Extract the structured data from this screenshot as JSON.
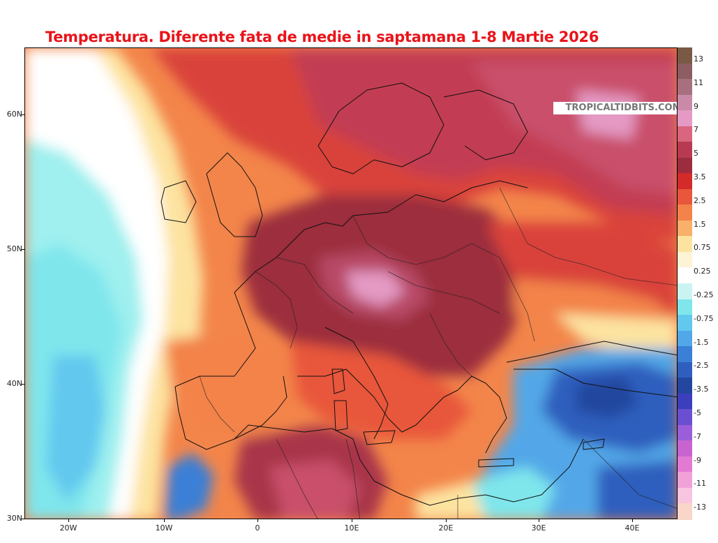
{
  "title": "Temperatura. Diferente fata de medie in saptamana 1-8 Martie 2026",
  "credit": "TROPICALTIDBITS.COM",
  "latitude_labels": [
    "60N",
    "50N",
    "40N",
    "30N"
  ],
  "longitude_labels": [
    "20W",
    "10W",
    "0",
    "10E",
    "20E",
    "30E",
    "40E"
  ],
  "colorbar": {
    "labels": [
      "13",
      "11",
      "9",
      "7",
      "5",
      "3.5",
      "2.5",
      "1.5",
      "0.75",
      "0.25",
      "-0.25",
      "-0.75",
      "-1.5",
      "-2.5",
      "-3.5",
      "-5",
      "-7",
      "-9",
      "-11",
      "-13"
    ],
    "colors": [
      "#7a5a45",
      "#8c5d63",
      "#a8707f",
      "#c98aa8",
      "#e49ac4",
      "#d9657e",
      "#b83a52",
      "#9c2d3e",
      "#d42a2a",
      "#e8563b",
      "#f3834a",
      "#f9b06a",
      "#fde3a0",
      "#fff3d6",
      "#ffffff",
      "#c9f4f1",
      "#7fe6ec",
      "#62c8ee",
      "#52a7e8",
      "#3b7fd6",
      "#2f5fbe",
      "#23469e",
      "#3b3fbd",
      "#6a4fd0",
      "#9a5ed8",
      "#c764d0",
      "#e27ad3",
      "#f0a2d8",
      "#f7c5df",
      "#f9d6c9"
    ]
  },
  "map_legend_meaning": {
    "warm_colors": "positive anomaly",
    "cool_colors": "negative anomaly"
  }
}
